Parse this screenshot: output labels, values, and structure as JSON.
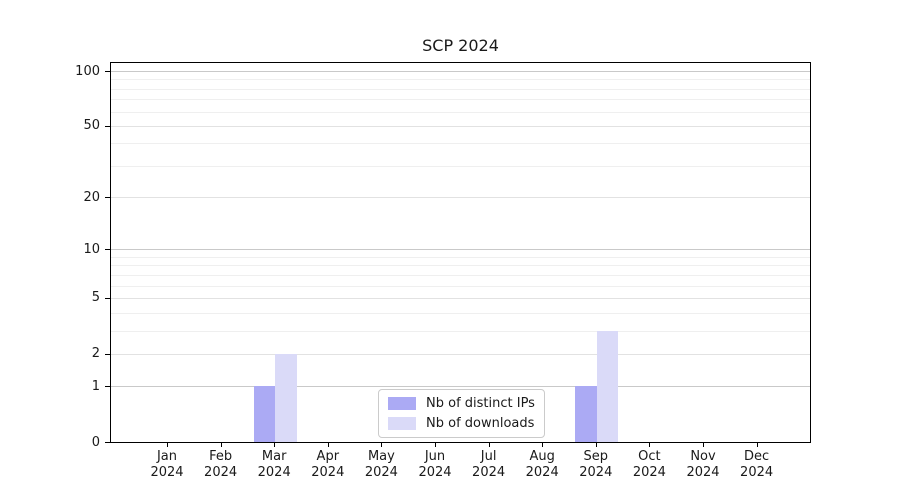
{
  "chart_data": {
    "type": "bar",
    "title": "SCP 2024",
    "categories": [
      "Jan",
      "Feb",
      "Mar",
      "Apr",
      "May",
      "Jun",
      "Jul",
      "Aug",
      "Sep",
      "Oct",
      "Nov",
      "Dec"
    ],
    "year": "2024",
    "series": [
      {
        "name": "Nb of distinct IPs",
        "color": "#abaaf4",
        "values": [
          0,
          0,
          1,
          0,
          0,
          0,
          0,
          0,
          1,
          0,
          0,
          0
        ]
      },
      {
        "name": "Nb of downloads",
        "color": "#dadaf8",
        "values": [
          0,
          0,
          2,
          0,
          0,
          0,
          0,
          0,
          3,
          0,
          0,
          0
        ]
      }
    ],
    "yscale": "log1p",
    "ylim": [
      0,
      110.5
    ],
    "yticks": [
      0,
      1,
      2,
      5,
      10,
      20,
      50,
      100
    ],
    "yticks_minor": [
      3,
      4,
      6,
      7,
      8,
      9,
      30,
      40,
      60,
      70,
      80,
      90
    ],
    "grid": "horizontal",
    "legend_position": "lower center",
    "axis_color": "#000000",
    "grid_color_decade": "#c9c9c9",
    "grid_color_labeled": "#e2e2e2",
    "grid_color_minor": "#efefef"
  }
}
